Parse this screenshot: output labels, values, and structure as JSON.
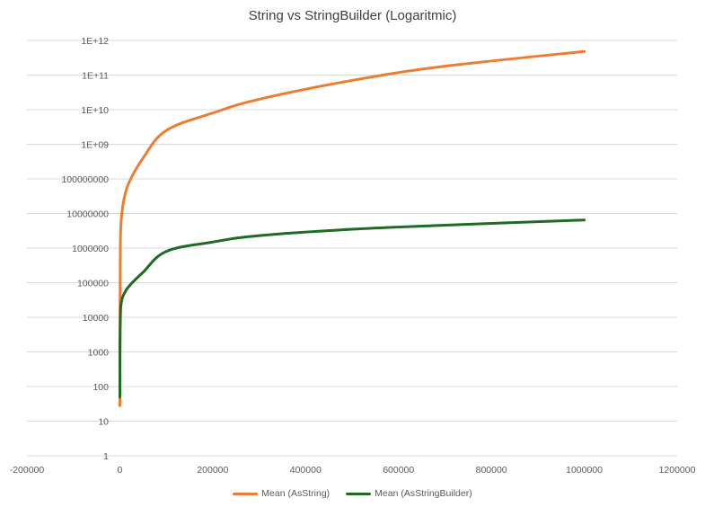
{
  "chart_data": {
    "type": "line",
    "title": "String vs StringBuilder (Logaritmic)",
    "xlabel": "",
    "ylabel": "",
    "x_scale": "linear",
    "y_scale": "log",
    "xlim": [
      -200000,
      1200000
    ],
    "ylim": [
      1,
      1000000000000
    ],
    "x_ticks": [
      "-200000",
      "0",
      "200000",
      "400000",
      "600000",
      "800000",
      "1000000",
      "1200000"
    ],
    "y_ticks": [
      "1",
      "10",
      "100",
      "1000",
      "10000",
      "100000",
      "1000000",
      "10000000",
      "100000000",
      "1E+09",
      "1E+10",
      "1E+11",
      "1E+12"
    ],
    "grid": true,
    "legend_position": "bottom",
    "series": [
      {
        "name": "Mean (AsString)",
        "color": "#ED7D31",
        "x": [
          100,
          200,
          500,
          1000,
          2000,
          5000,
          10000,
          20000,
          50000,
          100000,
          200000,
          300000,
          500000,
          700000,
          1000000
        ],
        "y": [
          28,
          1500,
          30000,
          600000,
          4000000,
          12000000,
          30000000,
          80000000,
          400000000,
          2500000000,
          8000000000,
          20000000000,
          70000000000,
          180000000000,
          480000000000
        ]
      },
      {
        "name": "Mean (AsStringBuilder)",
        "color": "#1E6B24",
        "x": [
          100,
          200,
          500,
          1000,
          2000,
          5000,
          10000,
          20000,
          50000,
          100000,
          200000,
          300000,
          500000,
          700000,
          1000000
        ],
        "y": [
          50,
          200,
          2000,
          7000,
          20000,
          35000,
          50000,
          80000,
          200000,
          800000,
          1500000,
          2300000,
          3500000,
          4600000,
          6500000
        ]
      }
    ]
  }
}
